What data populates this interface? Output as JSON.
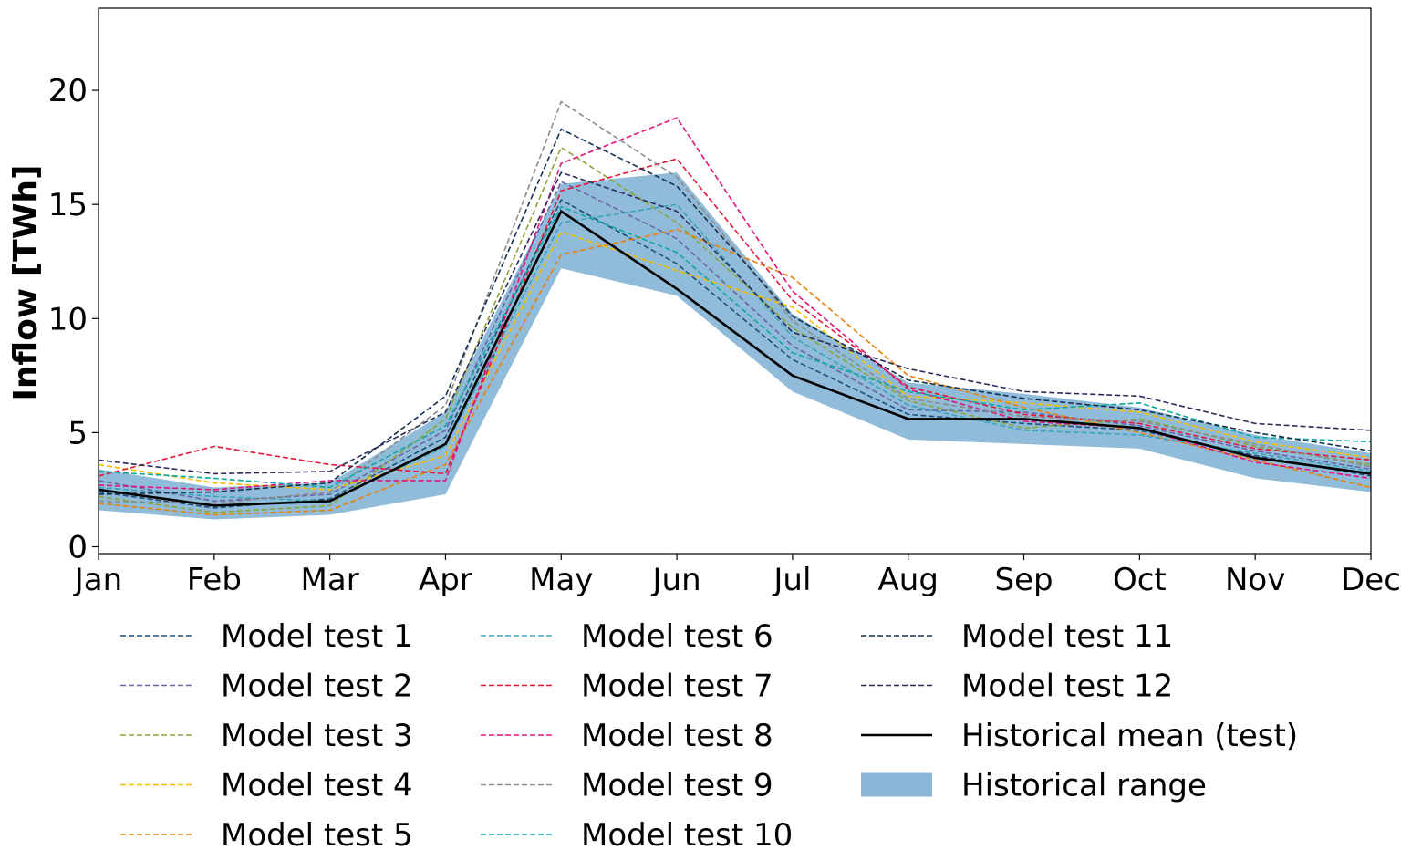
{
  "chart_data": {
    "type": "line",
    "title": "",
    "xlabel": "",
    "ylabel": "Inflow [TWh]",
    "categories": [
      "Jan",
      "Feb",
      "Mar",
      "Apr",
      "May",
      "Jun",
      "Jul",
      "Aug",
      "Sep",
      "Oct",
      "Nov",
      "Dec"
    ],
    "yticks": [
      0,
      5,
      10,
      15,
      20
    ],
    "ylim": [
      -0.3,
      23.6
    ],
    "grid": false,
    "legend_placement": "below",
    "historical_mean": {
      "name": "Historical mean (test)",
      "color": "#000000",
      "values": [
        2.5,
        1.8,
        2.0,
        4.5,
        14.7,
        11.3,
        7.5,
        5.6,
        5.6,
        5.2,
        3.9,
        3.2
      ]
    },
    "historical_range": {
      "name": "Historical range",
      "color": "#8ab8d8",
      "lower": [
        1.6,
        1.2,
        1.4,
        2.3,
        12.2,
        11.0,
        6.8,
        4.7,
        4.5,
        4.3,
        3.0,
        2.4
      ],
      "upper": [
        3.4,
        2.6,
        2.8,
        5.9,
        15.9,
        16.4,
        10.2,
        7.2,
        6.7,
        6.1,
        4.9,
        4.1
      ]
    },
    "series": [
      {
        "name": "Model test 1",
        "color": "#1f4e79",
        "values": [
          2.4,
          1.7,
          2.1,
          4.8,
          15.2,
          12.4,
          8.2,
          5.8,
          5.4,
          5.1,
          4.0,
          3.1
        ]
      },
      {
        "name": "Model test 2",
        "color": "#6a64a8",
        "values": [
          2.9,
          2.0,
          2.3,
          5.1,
          16.0,
          13.5,
          8.8,
          6.0,
          5.9,
          5.3,
          4.2,
          3.4
        ]
      },
      {
        "name": "Model test 3",
        "color": "#8aa63d",
        "values": [
          2.2,
          1.5,
          1.8,
          5.6,
          17.5,
          14.2,
          9.6,
          6.4,
          5.2,
          5.6,
          4.4,
          3.6
        ]
      },
      {
        "name": "Model test 4",
        "color": "#f5be00",
        "values": [
          3.6,
          2.8,
          2.5,
          4.0,
          13.8,
          12.1,
          10.5,
          6.6,
          6.3,
          5.9,
          4.6,
          3.9
        ]
      },
      {
        "name": "Model test 5",
        "color": "#e8820c",
        "values": [
          1.9,
          1.4,
          1.6,
          3.6,
          12.8,
          13.9,
          11.8,
          7.5,
          6.1,
          5.0,
          3.8,
          2.6
        ]
      },
      {
        "name": "Model test 6",
        "color": "#3aa3b9",
        "values": [
          2.6,
          2.2,
          2.0,
          4.4,
          14.2,
          15.0,
          9.2,
          6.2,
          5.1,
          4.9,
          4.1,
          3.3
        ]
      },
      {
        "name": "Model test 7",
        "color": "#e4163a",
        "values": [
          3.1,
          4.4,
          3.6,
          3.2,
          15.6,
          17.0,
          10.8,
          7.0,
          5.8,
          5.4,
          4.3,
          3.8
        ]
      },
      {
        "name": "Model test 8",
        "color": "#e0147a",
        "values": [
          2.7,
          2.5,
          2.9,
          2.9,
          16.8,
          18.8,
          11.2,
          6.9,
          5.5,
          5.2,
          3.7,
          3.0
        ]
      },
      {
        "name": "Model test 9",
        "color": "#8c8c8c",
        "values": [
          2.0,
          1.9,
          2.4,
          6.2,
          19.5,
          16.2,
          9.9,
          6.5,
          5.7,
          5.5,
          4.5,
          3.5
        ]
      },
      {
        "name": "Model test 10",
        "color": "#0fa8a0",
        "values": [
          3.3,
          3.0,
          2.6,
          5.3,
          14.9,
          12.9,
          8.5,
          6.8,
          6.0,
          6.3,
          4.8,
          4.6
        ]
      },
      {
        "name": "Model test 11",
        "color": "#15304f",
        "values": [
          2.3,
          2.4,
          2.8,
          6.6,
          18.3,
          15.8,
          10.1,
          7.3,
          6.5,
          6.0,
          5.0,
          4.2
        ]
      },
      {
        "name": "Model test 12",
        "color": "#2b2b5c",
        "values": [
          3.8,
          3.2,
          3.3,
          5.9,
          16.4,
          14.7,
          9.4,
          7.8,
          6.8,
          6.6,
          5.4,
          5.1
        ]
      }
    ]
  }
}
